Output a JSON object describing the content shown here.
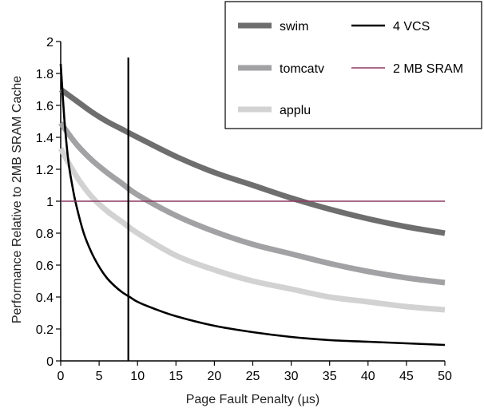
{
  "chart_data": {
    "type": "line",
    "title": "",
    "xlabel": "Page Fault Penalty (µs)",
    "ylabel": "Performance Relative to 2MB SRAM Cache",
    "xlim": [
      0,
      50
    ],
    "ylim": [
      0,
      2
    ],
    "xticks": [
      "0",
      "5",
      "10",
      "15",
      "20",
      "25",
      "30",
      "35",
      "40",
      "45",
      "50"
    ],
    "yticks": [
      "0",
      "0.2",
      "0.4",
      "0.6",
      "0.8",
      "1",
      "1.2",
      "1.4",
      "1.6",
      "1.8",
      "2"
    ],
    "grid": false,
    "legend_position": "top-right",
    "series": [
      {
        "name": "swim",
        "color": "#6e6e6e",
        "x": [
          0,
          2,
          4,
          6,
          8,
          10,
          15,
          20,
          25,
          30,
          35,
          40,
          45,
          50
        ],
        "y": [
          1.7,
          1.63,
          1.56,
          1.5,
          1.45,
          1.4,
          1.28,
          1.18,
          1.1,
          1.02,
          0.95,
          0.89,
          0.84,
          0.8
        ]
      },
      {
        "name": "tomcatv",
        "color": "#a2a2a4",
        "x": [
          0,
          2,
          4,
          6,
          8,
          10,
          15,
          20,
          25,
          30,
          35,
          40,
          45,
          50
        ],
        "y": [
          1.49,
          1.36,
          1.26,
          1.18,
          1.11,
          1.04,
          0.91,
          0.81,
          0.73,
          0.67,
          0.61,
          0.56,
          0.52,
          0.49
        ]
      },
      {
        "name": "applu",
        "color": "#d2d2d2",
        "x": [
          0,
          2,
          4,
          6,
          8,
          10,
          15,
          20,
          25,
          30,
          35,
          40,
          45,
          50
        ],
        "y": [
          1.33,
          1.16,
          1.03,
          0.94,
          0.87,
          0.8,
          0.66,
          0.57,
          0.5,
          0.45,
          0.4,
          0.37,
          0.34,
          0.32
        ]
      },
      {
        "name": "4 VCS",
        "color": "#000000",
        "x": [
          0,
          0.5,
          1,
          1.5,
          2,
          3,
          4,
          5,
          6,
          7,
          8,
          9,
          10,
          12,
          15,
          20,
          25,
          30,
          35,
          40,
          45,
          50
        ],
        "y": [
          1.86,
          1.5,
          1.25,
          1.1,
          0.98,
          0.8,
          0.68,
          0.59,
          0.52,
          0.47,
          0.43,
          0.4,
          0.37,
          0.33,
          0.28,
          0.22,
          0.18,
          0.15,
          0.13,
          0.12,
          0.11,
          0.1
        ]
      },
      {
        "name": "2 MB SRAM",
        "color": "#8e3a64",
        "x": [
          0,
          50
        ],
        "y": [
          1,
          1
        ]
      }
    ],
    "annotations": [
      {
        "type": "vertical-line",
        "x": 8.8,
        "y_range": [
          0,
          1.9
        ],
        "color": "#000000"
      }
    ]
  }
}
